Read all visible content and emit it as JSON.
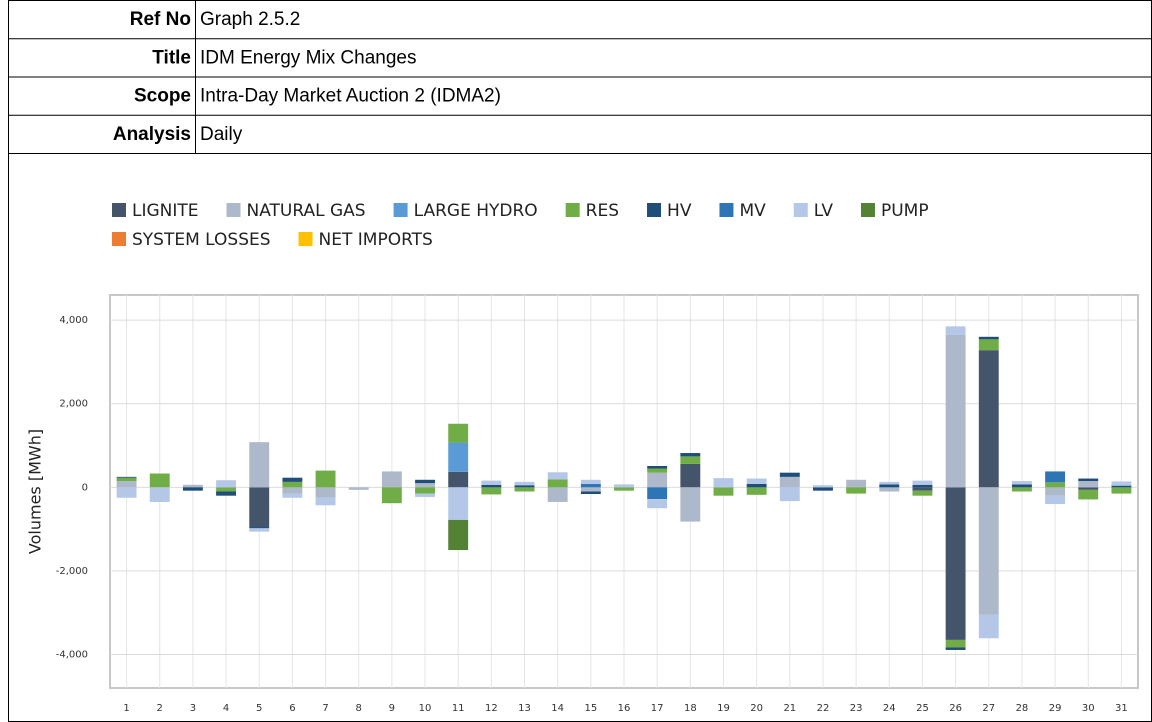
{
  "header": {
    "rows": [
      [
        "Ref No",
        "Graph 2.5.2"
      ],
      [
        "Title",
        "IDM Energy Mix Changes"
      ],
      [
        "Scope",
        "Intra-Day Market Auction 2 (IDMA2)"
      ],
      [
        "Analysis",
        "Daily"
      ]
    ]
  },
  "chart_data": {
    "type": "stacked_bar",
    "y_label": "Volumes [MWh]",
    "categories": [
      "1",
      "2",
      "3",
      "4",
      "5",
      "6",
      "7",
      "8",
      "9",
      "10",
      "11",
      "12",
      "13",
      "14",
      "15",
      "16",
      "17",
      "18",
      "19",
      "20",
      "21",
      "22",
      "23",
      "24",
      "25",
      "26",
      "27",
      "28",
      "29",
      "30",
      "31"
    ],
    "ylim": [
      -4800,
      4600
    ],
    "yticks": [
      {
        "value": -4000,
        "label": "-4,000"
      },
      {
        "value": -2000,
        "label": "-2,000"
      },
      0,
      {
        "value": 2000,
        "label": "2,000"
      },
      {
        "value": 4000,
        "label": "4,000"
      }
    ],
    "grid": true,
    "series": [
      {
        "name": "LIGNITE",
        "color": "#44546a",
        "values": [
          0,
          0,
          0,
          0,
          -950,
          0,
          0,
          0,
          0,
          0,
          370,
          0,
          0,
          0,
          0,
          0,
          0,
          560,
          0,
          0,
          0,
          0,
          0,
          0,
          -80,
          -3650,
          3280,
          0,
          0,
          -60,
          0
        ]
      },
      {
        "name": "NATURAL GAS",
        "color": "#adb9ca",
        "values": [
          150,
          0,
          60,
          0,
          1080,
          -150,
          -250,
          -60,
          380,
          100,
          0,
          0,
          0,
          -350,
          -100,
          0,
          350,
          -820,
          0,
          0,
          250,
          0,
          180,
          -100,
          0,
          3650,
          -3050,
          0,
          -200,
          150,
          0
        ]
      },
      {
        "name": "LARGE HYDRO",
        "color": "#5b9bd5",
        "values": [
          0,
          0,
          0,
          0,
          0,
          0,
          0,
          0,
          0,
          0,
          700,
          0,
          0,
          0,
          0,
          0,
          0,
          0,
          0,
          0,
          0,
          0,
          0,
          0,
          0,
          0,
          0,
          0,
          0,
          0,
          0
        ]
      },
      {
        "name": "RES",
        "color": "#70ad47",
        "values": [
          80,
          330,
          0,
          -100,
          0,
          130,
          400,
          0,
          -380,
          -150,
          450,
          -170,
          -100,
          190,
          0,
          -80,
          100,
          180,
          -200,
          -180,
          0,
          0,
          -150,
          0,
          -120,
          -180,
          260,
          -100,
          120,
          -230,
          -150
        ]
      },
      {
        "name": "HV",
        "color": "#1f4e79",
        "values": [
          20,
          0,
          -80,
          -100,
          -30,
          100,
          0,
          0,
          0,
          80,
          0,
          60,
          50,
          0,
          -60,
          0,
          60,
          80,
          0,
          80,
          100,
          -80,
          0,
          70,
          60,
          -60,
          60,
          70,
          0,
          60,
          40
        ]
      },
      {
        "name": "MV",
        "color": "#2e75b6",
        "values": [
          0,
          0,
          0,
          0,
          0,
          0,
          0,
          0,
          0,
          0,
          0,
          0,
          0,
          0,
          80,
          0,
          -280,
          0,
          0,
          0,
          0,
          0,
          0,
          0,
          0,
          0,
          0,
          0,
          260,
          0,
          0
        ]
      },
      {
        "name": "LV",
        "color": "#b4c7e7",
        "values": [
          -250,
          -350,
          0,
          170,
          -80,
          -100,
          -180,
          0,
          0,
          -80,
          -780,
          100,
          80,
          170,
          100,
          70,
          -220,
          0,
          220,
          130,
          -330,
          50,
          0,
          60,
          100,
          200,
          -560,
          80,
          -200,
          0,
          100
        ]
      },
      {
        "name": "PUMP",
        "color": "#548235",
        "values": [
          0,
          0,
          0,
          0,
          0,
          0,
          0,
          0,
          0,
          0,
          -720,
          0,
          0,
          0,
          0,
          0,
          0,
          0,
          0,
          0,
          0,
          0,
          0,
          0,
          0,
          0,
          0,
          0,
          0,
          0,
          0
        ]
      },
      {
        "name": "SYSTEM LOSSES",
        "color": "#ed7d31",
        "values": [
          0,
          0,
          0,
          0,
          0,
          0,
          0,
          0,
          0,
          0,
          0,
          0,
          0,
          0,
          0,
          0,
          0,
          0,
          0,
          0,
          0,
          0,
          0,
          0,
          0,
          0,
          0,
          0,
          0,
          0,
          0
        ]
      },
      {
        "name": "NET IMPORTS",
        "color": "#ffc000",
        "values": [
          0,
          0,
          0,
          0,
          0,
          0,
          0,
          0,
          0,
          0,
          0,
          0,
          0,
          0,
          0,
          0,
          0,
          0,
          0,
          0,
          0,
          0,
          0,
          0,
          0,
          0,
          0,
          0,
          0,
          0,
          0
        ]
      }
    ]
  }
}
